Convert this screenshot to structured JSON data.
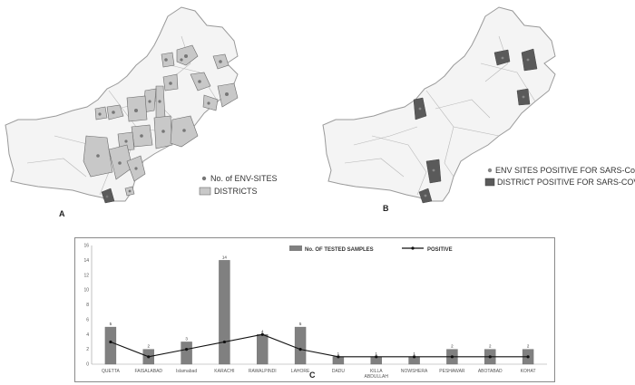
{
  "colors": {
    "background": "#ffffff",
    "map_fill": "#f4f4f4",
    "map_border": "#9a9a9a",
    "district_fill": "#c8c8c8",
    "district_border": "#6a6a6a",
    "site_dot": "#777777",
    "positive_dark": "#5a5a5a",
    "bar_fill": "#808080",
    "line": "#111111"
  },
  "panel_a": {
    "label": "A",
    "legend": {
      "sites_label": "No. of ENV-SITES",
      "districts_label": "DISTRICTS"
    }
  },
  "panel_b": {
    "label": "B",
    "legend": {
      "sites_label": "ENV SITES POSITIVE FOR SARS-CoV-2",
      "districts_label": "DISTRICT POSITIVE FOR SARS-COV-2"
    }
  },
  "chart_data": {
    "type": "bar",
    "panel_label": "C",
    "categories": [
      "QUETTA",
      "FAISALABAD",
      "Islamabad",
      "KARACHI",
      "RAWALPINDI",
      "LAHORE",
      "DADU",
      "KILLA ABDULLAH",
      "NOWSHERA",
      "PESHAWAR",
      "ABOTABAD",
      "KOHAT"
    ],
    "series": [
      {
        "name": "No. OF TESTED SAMPLES",
        "type": "bar",
        "values": [
          5,
          2,
          3,
          14,
          4,
          5,
          1,
          1,
          1,
          2,
          2,
          2
        ]
      },
      {
        "name": "POSITIVE",
        "type": "line",
        "values": [
          3,
          1,
          2,
          3,
          4,
          2,
          1,
          1,
          1,
          1,
          1,
          1
        ]
      }
    ],
    "ylim": [
      0,
      16
    ],
    "yticks": [
      "0",
      "2",
      "4",
      "6",
      "8",
      "10",
      "12",
      "14",
      "16"
    ],
    "legend_position": "top",
    "grid": false
  }
}
